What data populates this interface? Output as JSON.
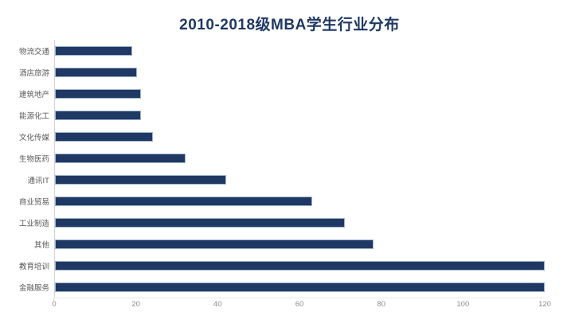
{
  "title": "2010-2018级MBA学生行业分布",
  "colors": {
    "bar_fill": "#1F3864",
    "bar_border": "#9FB4CE",
    "title_text": "#1F3864",
    "category_label": "#595959",
    "tick_label": "#8C8C8C",
    "axis_line": "#CFD2D8"
  },
  "chart_data": {
    "type": "bar",
    "orientation": "horizontal",
    "title": "2010-2018级MBA学生行业分布",
    "categories_top_to_bottom": [
      "物流交通",
      "酒店旅游",
      "建筑地产",
      "能源化工",
      "文化传媒",
      "生物医药",
      "通讯IT",
      "商业贸易",
      "工业制造",
      "其他",
      "教育培训",
      "金融服务"
    ],
    "values": [
      19,
      20,
      21,
      21,
      24,
      32,
      42,
      63,
      71,
      78,
      120,
      120
    ],
    "xlabel": "",
    "ylabel": "",
    "xlim": [
      0,
      120
    ],
    "x_ticks": [
      0,
      20,
      40,
      60,
      80,
      100,
      120
    ],
    "grid": false,
    "legend": false
  }
}
